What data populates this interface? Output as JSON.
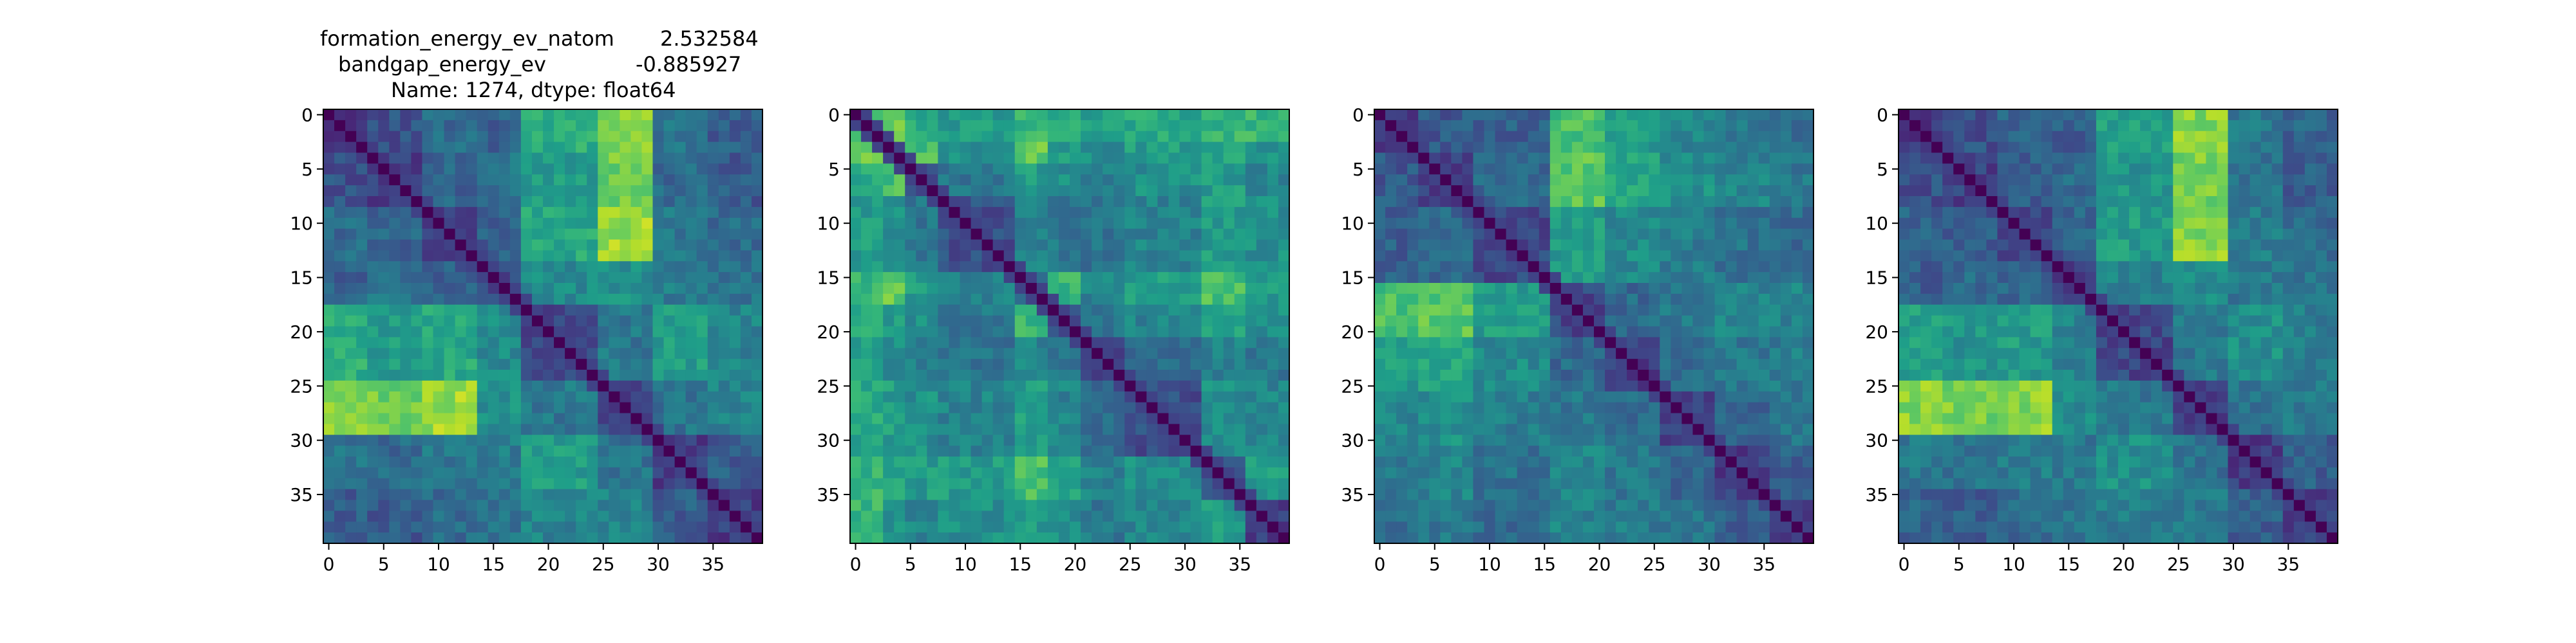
{
  "figure_title": {
    "line1_label": "formation_energy_ev_natom",
    "line1_value": "2.532584",
    "line2_label": "bandgap_energy_ev",
    "line2_value": "-0.885927",
    "line3": "Name: 1274, dtype: float64"
  },
  "colormap": {
    "name": "viridis",
    "stops": [
      "#440154",
      "#482878",
      "#3e4989",
      "#31688e",
      "#26828e",
      "#1f9e89",
      "#35b779",
      "#6ece58",
      "#b5de2b",
      "#fde725"
    ]
  },
  "chart_data": [
    {
      "type": "heatmap",
      "title": "formation_energy_ev_natom    2.532584 / bandgap_energy_ev    -0.885927 / Name: 1274, dtype: float64",
      "matrix_size": 40,
      "x_ticks": [
        0,
        5,
        10,
        15,
        20,
        25,
        30,
        35
      ],
      "y_ticks": [
        0,
        5,
        10,
        15,
        20,
        25,
        30,
        35
      ],
      "diagonal_value": 0,
      "value_range": [
        0,
        1
      ],
      "block_boundaries": [
        0,
        4,
        9,
        14,
        18,
        25,
        30,
        35,
        40
      ],
      "block_means": [
        [
          0.18,
          0.25,
          0.35,
          0.3,
          0.62,
          0.8,
          0.38,
          0.3
        ],
        [
          0.25,
          0.2,
          0.32,
          0.38,
          0.55,
          0.78,
          0.35,
          0.28
        ],
        [
          0.35,
          0.32,
          0.22,
          0.3,
          0.6,
          0.85,
          0.4,
          0.35
        ],
        [
          0.3,
          0.38,
          0.3,
          0.2,
          0.48,
          0.5,
          0.42,
          0.38
        ],
        [
          0.62,
          0.55,
          0.6,
          0.48,
          0.22,
          0.4,
          0.55,
          0.45
        ],
        [
          0.8,
          0.78,
          0.85,
          0.5,
          0.4,
          0.2,
          0.38,
          0.45
        ],
        [
          0.38,
          0.35,
          0.4,
          0.42,
          0.55,
          0.38,
          0.18,
          0.3
        ],
        [
          0.3,
          0.28,
          0.35,
          0.38,
          0.45,
          0.45,
          0.3,
          0.18
        ]
      ]
    },
    {
      "type": "heatmap",
      "matrix_size": 40,
      "x_ticks": [
        0,
        5,
        10,
        15,
        20,
        25,
        30,
        35
      ],
      "y_ticks": [
        0,
        5,
        10,
        15,
        20,
        25,
        30,
        35
      ],
      "diagonal_value": 0,
      "value_range": [
        0,
        1
      ],
      "block_boundaries": [
        0,
        3,
        5,
        8,
        15,
        18,
        21,
        25,
        32,
        36,
        40
      ],
      "block_means": [
        [
          0.7,
          0.75,
          0.6,
          0.55,
          0.65,
          0.6,
          0.55,
          0.6,
          0.65,
          0.65
        ],
        [
          0.75,
          0.35,
          0.7,
          0.5,
          0.75,
          0.55,
          0.5,
          0.55,
          0.6,
          0.5
        ],
        [
          0.6,
          0.7,
          0.3,
          0.4,
          0.55,
          0.5,
          0.45,
          0.5,
          0.55,
          0.45
        ],
        [
          0.55,
          0.5,
          0.4,
          0.25,
          0.45,
          0.4,
          0.38,
          0.45,
          0.55,
          0.5
        ],
        [
          0.65,
          0.75,
          0.55,
          0.45,
          0.28,
          0.65,
          0.45,
          0.55,
          0.7,
          0.55
        ],
        [
          0.6,
          0.55,
          0.5,
          0.4,
          0.65,
          0.25,
          0.4,
          0.45,
          0.6,
          0.5
        ],
        [
          0.55,
          0.5,
          0.45,
          0.38,
          0.45,
          0.4,
          0.22,
          0.35,
          0.45,
          0.4
        ],
        [
          0.6,
          0.55,
          0.5,
          0.45,
          0.55,
          0.45,
          0.35,
          0.25,
          0.5,
          0.45
        ],
        [
          0.65,
          0.6,
          0.55,
          0.55,
          0.7,
          0.6,
          0.45,
          0.5,
          0.25,
          0.55
        ],
        [
          0.65,
          0.5,
          0.45,
          0.5,
          0.55,
          0.5,
          0.4,
          0.45,
          0.55,
          0.2
        ]
      ]
    },
    {
      "type": "heatmap",
      "matrix_size": 40,
      "x_ticks": [
        0,
        5,
        10,
        15,
        20,
        25,
        30,
        35
      ],
      "y_ticks": [
        0,
        5,
        10,
        15,
        20,
        25,
        30,
        35
      ],
      "diagonal_value": 0,
      "value_range": [
        0,
        1
      ],
      "block_boundaries": [
        0,
        4,
        9,
        16,
        21,
        26,
        31,
        36,
        40
      ],
      "block_means": [
        [
          0.18,
          0.28,
          0.3,
          0.7,
          0.55,
          0.45,
          0.4,
          0.35
        ],
        [
          0.28,
          0.2,
          0.35,
          0.75,
          0.6,
          0.5,
          0.45,
          0.4
        ],
        [
          0.3,
          0.35,
          0.22,
          0.55,
          0.48,
          0.42,
          0.38,
          0.35
        ],
        [
          0.7,
          0.75,
          0.55,
          0.22,
          0.35,
          0.4,
          0.45,
          0.45
        ],
        [
          0.55,
          0.6,
          0.48,
          0.35,
          0.2,
          0.35,
          0.4,
          0.42
        ],
        [
          0.45,
          0.5,
          0.42,
          0.4,
          0.35,
          0.18,
          0.32,
          0.38
        ],
        [
          0.4,
          0.45,
          0.38,
          0.45,
          0.4,
          0.32,
          0.18,
          0.3
        ],
        [
          0.35,
          0.4,
          0.35,
          0.45,
          0.42,
          0.38,
          0.3,
          0.18
        ]
      ]
    },
    {
      "type": "heatmap",
      "matrix_size": 40,
      "x_ticks": [
        0,
        5,
        10,
        15,
        20,
        25,
        30,
        35
      ],
      "y_ticks": [
        0,
        5,
        10,
        15,
        20,
        25,
        30,
        35
      ],
      "diagonal_value": 0,
      "value_range": [
        0,
        1
      ],
      "block_boundaries": [
        0,
        4,
        9,
        14,
        18,
        25,
        30,
        35,
        40
      ],
      "block_means": [
        [
          0.18,
          0.25,
          0.32,
          0.3,
          0.58,
          0.82,
          0.4,
          0.32
        ],
        [
          0.25,
          0.2,
          0.3,
          0.35,
          0.52,
          0.8,
          0.38,
          0.3
        ],
        [
          0.32,
          0.3,
          0.22,
          0.32,
          0.55,
          0.82,
          0.42,
          0.35
        ],
        [
          0.3,
          0.35,
          0.32,
          0.2,
          0.45,
          0.48,
          0.4,
          0.38
        ],
        [
          0.58,
          0.52,
          0.55,
          0.45,
          0.22,
          0.4,
          0.5,
          0.42
        ],
        [
          0.82,
          0.8,
          0.82,
          0.48,
          0.4,
          0.2,
          0.38,
          0.42
        ],
        [
          0.4,
          0.38,
          0.42,
          0.4,
          0.5,
          0.38,
          0.18,
          0.3
        ],
        [
          0.32,
          0.3,
          0.35,
          0.38,
          0.42,
          0.42,
          0.3,
          0.18
        ]
      ]
    }
  ]
}
